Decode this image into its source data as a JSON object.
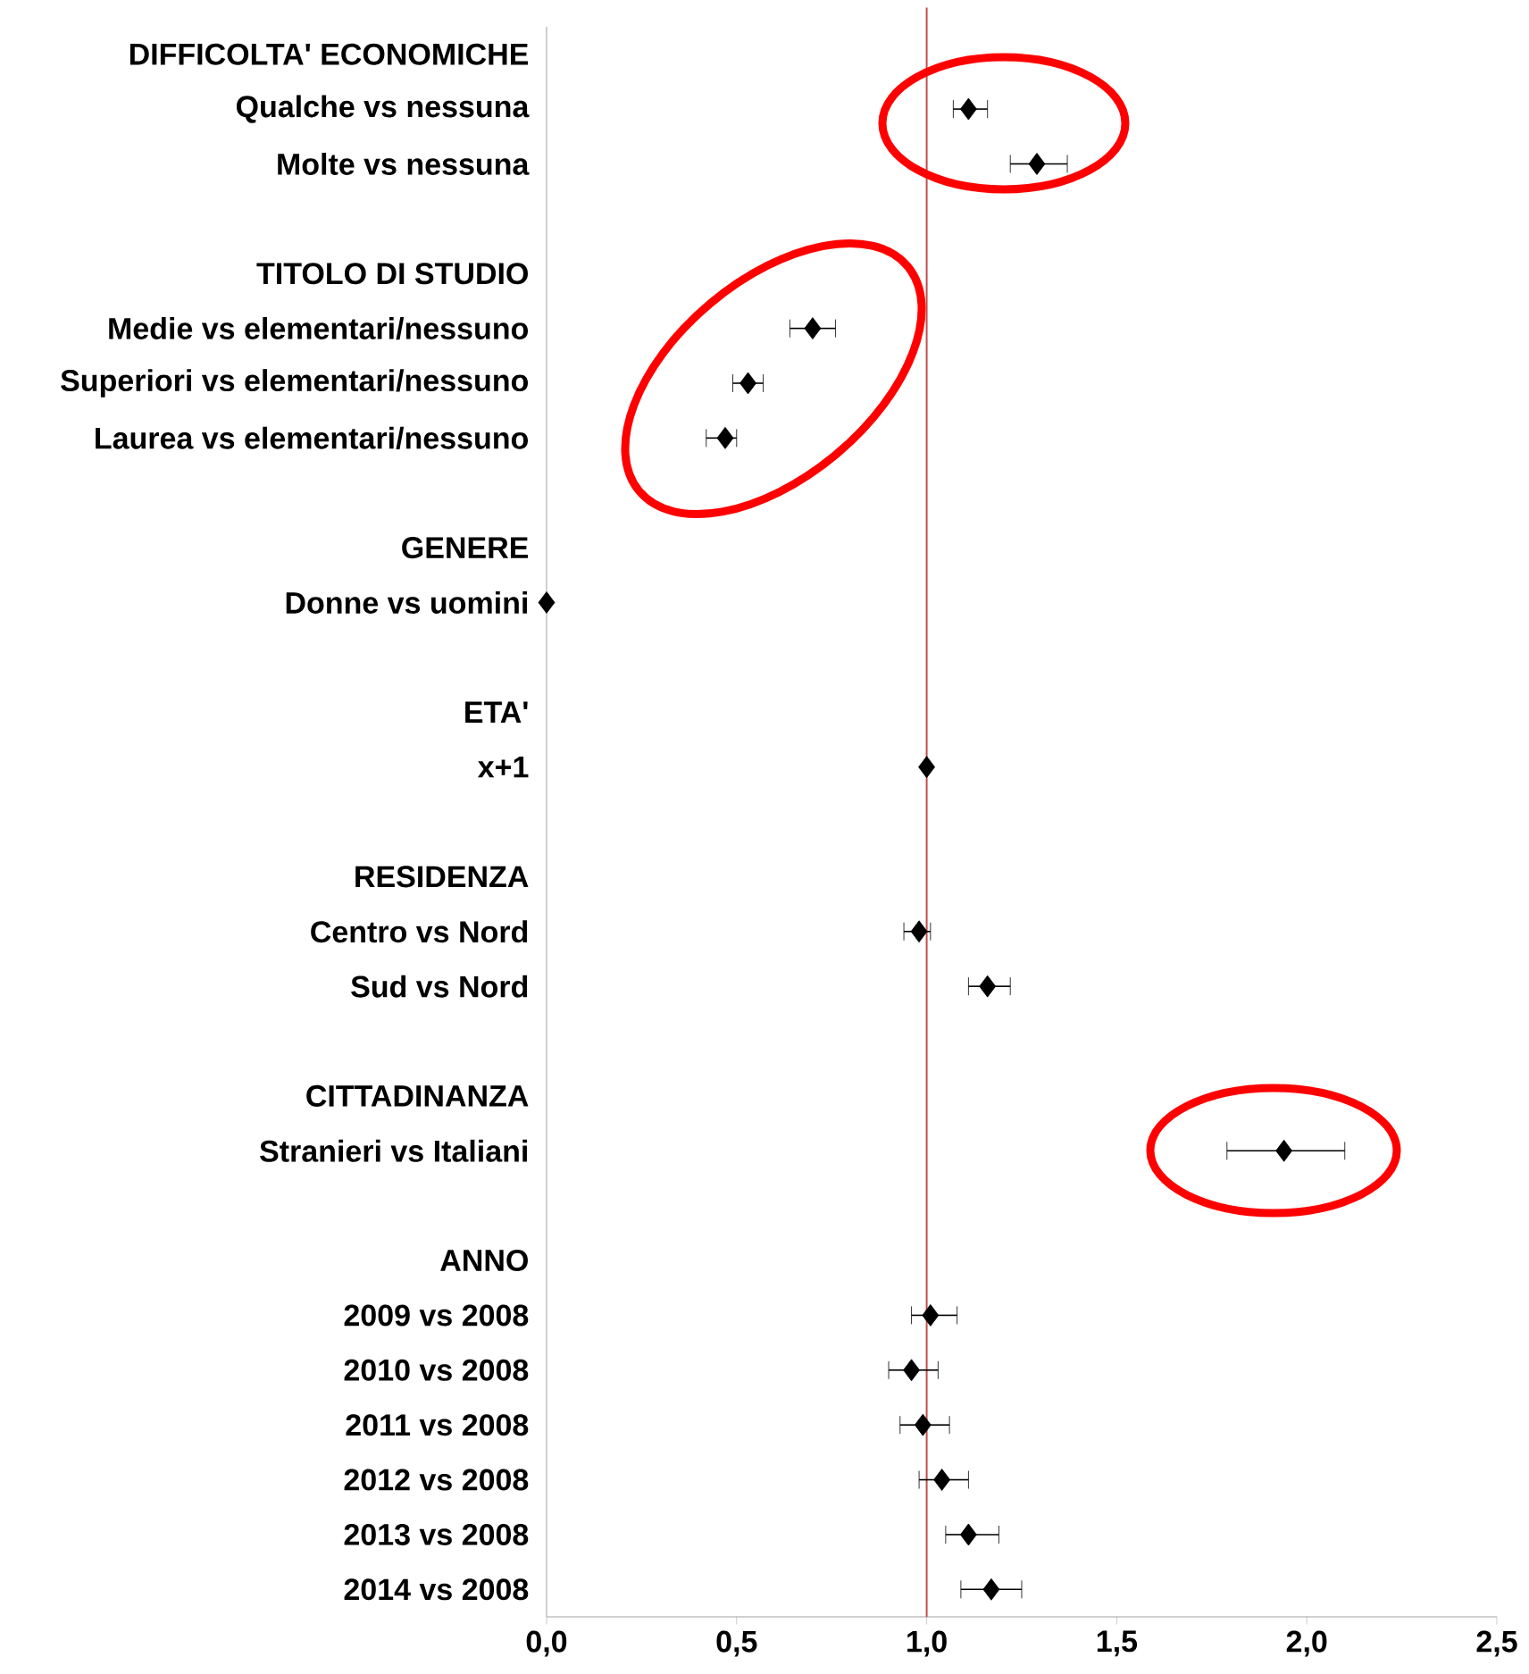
{
  "chart_data": {
    "type": "scatter",
    "orientation": "horizontal",
    "categories": [
      "DIFFICOLTA' ECONOMICHE",
      "Qualche vs nessuna",
      "Molte vs nessuna",
      null,
      "TITOLO DI STUDIO",
      "Medie vs elementari/nessuno",
      "Superiori vs elementari/nessuno",
      "Laurea vs elementari/nessuno",
      null,
      "GENERE",
      "Donne vs uomini",
      null,
      "ETA'",
      "x+1",
      null,
      "RESIDENZA",
      "Centro vs Nord",
      "Sud vs Nord",
      null,
      "CITTADINANZA",
      "Stranieri vs Italiani",
      null,
      "ANNO",
      "2009 vs 2008",
      "2010 vs 2008",
      "2011 vs 2008",
      "2012 vs 2008",
      "2013 vs 2008",
      "2014 vs 2008"
    ],
    "series": [
      {
        "color": "#000000",
        "values": [
          null,
          1.11,
          1.29,
          null,
          null,
          0.7,
          0.53,
          0.47,
          null,
          null,
          0.0,
          null,
          null,
          1.0,
          null,
          null,
          0.98,
          1.16,
          null,
          null,
          1.94,
          null,
          null,
          1.01,
          0.96,
          0.99,
          1.04,
          1.11,
          1.17
        ],
        "errors": [
          null,
          [
            1.07,
            1.16
          ],
          [
            1.22,
            1.37
          ],
          null,
          null,
          [
            0.64,
            0.76
          ],
          [
            0.49,
            0.57
          ],
          [
            0.42,
            0.5
          ],
          null,
          null,
          null,
          null,
          null,
          null,
          null,
          null,
          [
            0.94,
            1.01
          ],
          [
            1.11,
            1.22
          ],
          null,
          null,
          [
            1.79,
            2.1
          ],
          null,
          null,
          [
            0.96,
            1.08
          ],
          [
            0.9,
            1.03
          ],
          [
            0.93,
            1.06
          ],
          [
            0.98,
            1.11
          ],
          [
            1.05,
            1.19
          ],
          [
            1.09,
            1.25
          ]
        ]
      }
    ],
    "xlim": [
      0,
      2.5
    ],
    "xticks": [
      {
        "value": 0,
        "label": "0,0"
      },
      {
        "value": 0.5,
        "label": "0,5"
      },
      {
        "value": 1,
        "label": "1,0"
      },
      {
        "value": 1.5,
        "label": "1,5"
      },
      {
        "value": 2,
        "label": "2,0"
      },
      {
        "value": 2.5,
        "label": "2,5"
      }
    ],
    "ref_lines": [
      {
        "axis": "x",
        "value": 1,
        "color": "#c0504d"
      }
    ],
    "grid": false,
    "marker": "diamond"
  }
}
